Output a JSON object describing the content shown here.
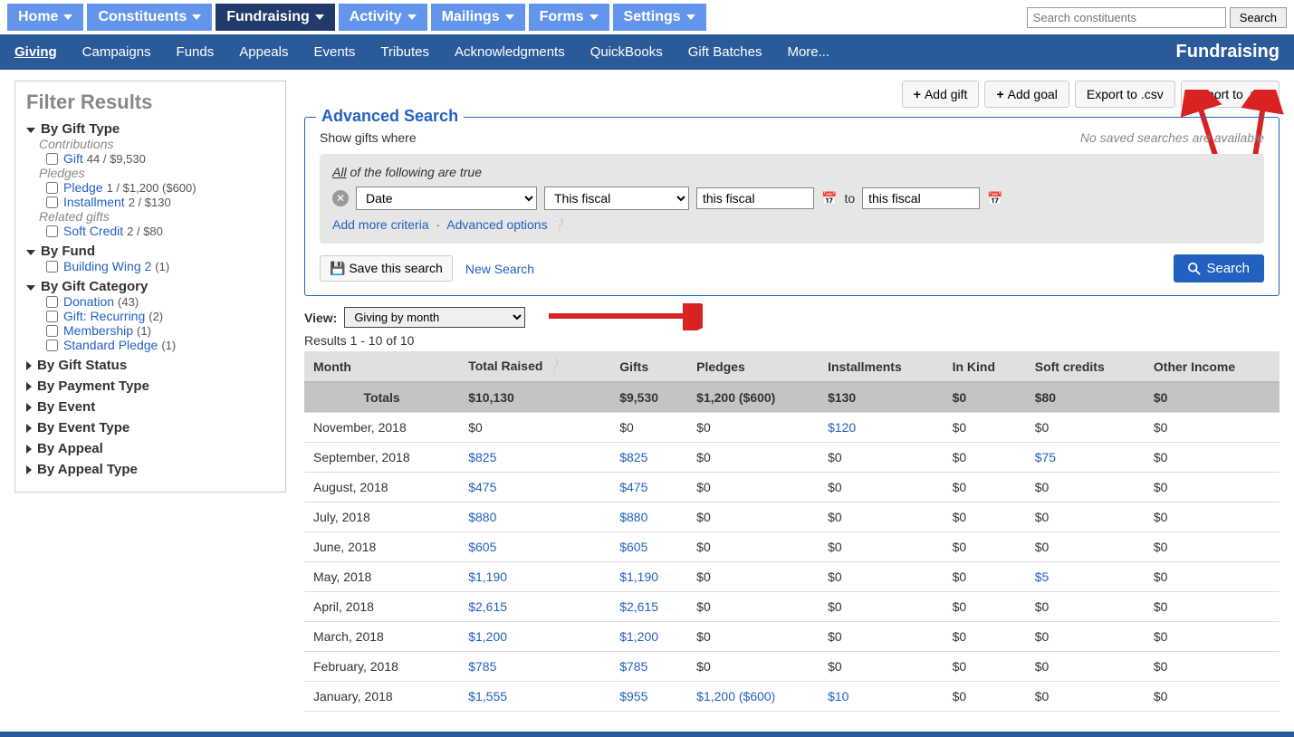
{
  "topnav": {
    "items": [
      {
        "label": "Home",
        "active": false
      },
      {
        "label": "Constituents",
        "active": false
      },
      {
        "label": "Fundraising",
        "active": true
      },
      {
        "label": "Activity",
        "active": false
      },
      {
        "label": "Mailings",
        "active": false
      },
      {
        "label": "Forms",
        "active": false
      },
      {
        "label": "Settings",
        "active": false
      }
    ],
    "search_placeholder": "Search constituents",
    "search_button": "Search"
  },
  "subnav": {
    "items": [
      "Giving",
      "Campaigns",
      "Funds",
      "Appeals",
      "Events",
      "Tributes",
      "Acknowledgments",
      "QuickBooks",
      "Gift Batches",
      "More..."
    ],
    "active": "Giving",
    "title": "Fundraising"
  },
  "sidebar": {
    "title": "Filter Results",
    "groups": {
      "giftType": {
        "label": "By Gift Type",
        "contributions_label": "Contributions",
        "gift": {
          "label": "Gift",
          "meta": "44 / $9,530"
        },
        "pledges_label": "Pledges",
        "pledge": {
          "label": "Pledge",
          "meta": "1 / $1,200 ($600)"
        },
        "installment": {
          "label": "Installment",
          "meta": "2 / $130"
        },
        "related_label": "Related gifts",
        "softcredit": {
          "label": "Soft Credit",
          "meta": "2 / $80"
        }
      },
      "fund": {
        "label": "By Fund",
        "items": [
          {
            "label": "Building Wing 2",
            "count": "(1)"
          }
        ]
      },
      "giftCategory": {
        "label": "By Gift Category",
        "items": [
          {
            "label": "Donation",
            "count": "(43)"
          },
          {
            "label": "Gift: Recurring",
            "count": "(2)"
          },
          {
            "label": "Membership",
            "count": "(1)"
          },
          {
            "label": "Standard Pledge",
            "count": "(1)"
          }
        ]
      },
      "closed": [
        "By Gift Status",
        "By Payment Type",
        "By Event",
        "By Event Type",
        "By Appeal",
        "By Appeal Type"
      ]
    }
  },
  "actions": {
    "add_gift": "Add gift",
    "add_goal": "Add goal",
    "export_csv": "Export to .csv",
    "export_pdf": "Export to .pdf"
  },
  "advsearch": {
    "legend": "Advanced Search",
    "show_where": "Show gifts where",
    "no_saved": "No saved searches are available",
    "criteria_head_all": "All",
    "criteria_head_rest": " of the following are true",
    "field_select": "Date",
    "range_select": "This fiscal",
    "date1": "this fiscal",
    "to": "to",
    "date2": "this fiscal",
    "add_more": "Add more criteria",
    "adv_options": "Advanced options",
    "save_search": "Save this search",
    "new_search": "New Search",
    "search_btn": "Search"
  },
  "view": {
    "label": "View:",
    "value": "Giving by month"
  },
  "results": {
    "count_text": "Results 1 - 10 of 10",
    "columns": [
      "Month",
      "Total Raised",
      "Gifts",
      "Pledges",
      "Installments",
      "In Kind",
      "Soft credits",
      "Other Income"
    ],
    "totals_label": "Totals",
    "totals": [
      "$10,130",
      "$9,530",
      "$1,200 ($600)",
      "$130",
      "$0",
      "$80",
      "$0"
    ],
    "rows": [
      {
        "month": "November, 2018",
        "cells": [
          {
            "v": "$0"
          },
          {
            "v": "$0"
          },
          {
            "v": "$0"
          },
          {
            "v": "$120",
            "link": true
          },
          {
            "v": "$0"
          },
          {
            "v": "$0"
          },
          {
            "v": "$0"
          }
        ]
      },
      {
        "month": "September, 2018",
        "cells": [
          {
            "v": "$825",
            "link": true
          },
          {
            "v": "$825",
            "link": true
          },
          {
            "v": "$0"
          },
          {
            "v": "$0"
          },
          {
            "v": "$0"
          },
          {
            "v": "$75",
            "link": true
          },
          {
            "v": "$0"
          }
        ]
      },
      {
        "month": "August, 2018",
        "cells": [
          {
            "v": "$475",
            "link": true
          },
          {
            "v": "$475",
            "link": true
          },
          {
            "v": "$0"
          },
          {
            "v": "$0"
          },
          {
            "v": "$0"
          },
          {
            "v": "$0"
          },
          {
            "v": "$0"
          }
        ]
      },
      {
        "month": "July, 2018",
        "cells": [
          {
            "v": "$880",
            "link": true
          },
          {
            "v": "$880",
            "link": true
          },
          {
            "v": "$0"
          },
          {
            "v": "$0"
          },
          {
            "v": "$0"
          },
          {
            "v": "$0"
          },
          {
            "v": "$0"
          }
        ]
      },
      {
        "month": "June, 2018",
        "cells": [
          {
            "v": "$605",
            "link": true
          },
          {
            "v": "$605",
            "link": true
          },
          {
            "v": "$0"
          },
          {
            "v": "$0"
          },
          {
            "v": "$0"
          },
          {
            "v": "$0"
          },
          {
            "v": "$0"
          }
        ]
      },
      {
        "month": "May, 2018",
        "cells": [
          {
            "v": "$1,190",
            "link": true
          },
          {
            "v": "$1,190",
            "link": true
          },
          {
            "v": "$0"
          },
          {
            "v": "$0"
          },
          {
            "v": "$0"
          },
          {
            "v": "$5",
            "link": true
          },
          {
            "v": "$0"
          }
        ]
      },
      {
        "month": "April, 2018",
        "cells": [
          {
            "v": "$2,615",
            "link": true
          },
          {
            "v": "$2,615",
            "link": true
          },
          {
            "v": "$0"
          },
          {
            "v": "$0"
          },
          {
            "v": "$0"
          },
          {
            "v": "$0"
          },
          {
            "v": "$0"
          }
        ]
      },
      {
        "month": "March, 2018",
        "cells": [
          {
            "v": "$1,200",
            "link": true
          },
          {
            "v": "$1,200",
            "link": true
          },
          {
            "v": "$0"
          },
          {
            "v": "$0"
          },
          {
            "v": "$0"
          },
          {
            "v": "$0"
          },
          {
            "v": "$0"
          }
        ]
      },
      {
        "month": "February, 2018",
        "cells": [
          {
            "v": "$785",
            "link": true
          },
          {
            "v": "$785",
            "link": true
          },
          {
            "v": "$0"
          },
          {
            "v": "$0"
          },
          {
            "v": "$0"
          },
          {
            "v": "$0"
          },
          {
            "v": "$0"
          }
        ]
      },
      {
        "month": "January, 2018",
        "cells": [
          {
            "v": "$1,555",
            "link": true
          },
          {
            "v": "$955",
            "link": true
          },
          {
            "v": "$1,200 ($600)",
            "link": true
          },
          {
            "v": "$10",
            "link": true
          },
          {
            "v": "$0"
          },
          {
            "v": "$0"
          },
          {
            "v": "$0"
          }
        ]
      }
    ]
  },
  "annotation_color": "#d92323"
}
